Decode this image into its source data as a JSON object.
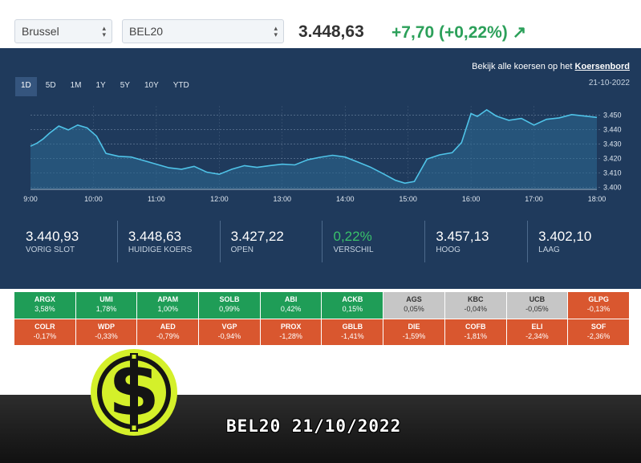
{
  "filters": {
    "market": "Brussel",
    "index": "BEL20"
  },
  "quote": {
    "price": "3.448,63",
    "change": "+7,70 (+0,22%) ↗",
    "accent_up": "#2ca05a"
  },
  "chart_panel": {
    "link_prefix": "Bekijk alle koersen op het ",
    "link_text": "Koersenbord",
    "date": "21-10-2022",
    "ranges": [
      "1D",
      "5D",
      "1M",
      "1Y",
      "5Y",
      "10Y",
      "YTD"
    ],
    "active_range": "1D"
  },
  "chart_data": {
    "type": "area",
    "title": "",
    "xlabel": "",
    "ylabel": "",
    "x_ticks": [
      "9:00",
      "10:00",
      "11:00",
      "12:00",
      "13:00",
      "14:00",
      "15:00",
      "16:00",
      "17:00",
      "18:00"
    ],
    "y_ticks": [
      "3.400",
      "3.410",
      "3.420",
      "3.430",
      "3.440",
      "3.450"
    ],
    "ylim": [
      3399,
      3458
    ],
    "xlim": [
      9.0,
      18.0
    ],
    "grid": true,
    "series": [
      {
        "x": [
          9.0,
          9.1,
          9.2,
          9.3,
          9.45,
          9.6,
          9.75,
          9.9,
          10.05,
          10.2,
          10.4,
          10.6,
          10.8,
          11.0,
          11.2,
          11.4,
          11.6,
          11.8,
          12.0,
          12.2,
          12.4,
          12.6,
          12.8,
          13.0,
          13.2,
          13.4,
          13.6,
          13.8,
          14.0,
          14.2,
          14.4,
          14.6,
          14.8,
          14.95,
          15.1,
          15.3,
          15.5,
          15.7,
          15.85,
          16.0,
          16.1,
          16.25,
          16.4,
          16.6,
          16.8,
          17.0,
          17.2,
          17.4,
          17.6,
          17.8,
          18.0
        ],
        "y": [
          3.4285,
          3.4305,
          3.4335,
          3.4375,
          3.4425,
          3.4398,
          3.4432,
          3.4412,
          3.4355,
          3.4235,
          3.4215,
          3.421,
          3.4185,
          3.416,
          3.4135,
          3.4125,
          3.4145,
          3.4105,
          3.409,
          3.4125,
          3.415,
          3.4138,
          3.415,
          3.416,
          3.4155,
          3.419,
          3.4208,
          3.4222,
          3.421,
          3.4175,
          3.414,
          3.4095,
          3.4048,
          3.4028,
          3.404,
          3.4195,
          3.4225,
          3.424,
          3.431,
          3.4512,
          3.4492,
          3.4538,
          3.4495,
          3.4465,
          3.4478,
          3.4432,
          3.4472,
          3.4482,
          3.4505,
          3.4495,
          3.4485
        ]
      }
    ]
  },
  "stats": [
    {
      "value": "3.440,93",
      "label": "VORIG SLOT"
    },
    {
      "value": "3.448,63",
      "label": "HUIDIGE KOERS"
    },
    {
      "value": "3.427,22",
      "label": "OPEN"
    },
    {
      "value": "0,22%",
      "label": "VERSCHIL"
    },
    {
      "value": "3.457,13",
      "label": "HOOG"
    },
    {
      "value": "3.402,10",
      "label": "LAAG"
    }
  ],
  "movers": [
    {
      "symbol": "ARGX",
      "change": "3,58%",
      "trend": "up"
    },
    {
      "symbol": "UMI",
      "change": "1,78%",
      "trend": "up"
    },
    {
      "symbol": "APAM",
      "change": "1,00%",
      "trend": "up"
    },
    {
      "symbol": "SOLB",
      "change": "0,99%",
      "trend": "up"
    },
    {
      "symbol": "ABI",
      "change": "0,42%",
      "trend": "up"
    },
    {
      "symbol": "ACKB",
      "change": "0,15%",
      "trend": "up"
    },
    {
      "symbol": "AGS",
      "change": "0,05%",
      "trend": "flat"
    },
    {
      "symbol": "KBC",
      "change": "-0,04%",
      "trend": "flat"
    },
    {
      "symbol": "UCB",
      "change": "-0,05%",
      "trend": "flat"
    },
    {
      "symbol": "GLPG",
      "change": "-0,13%",
      "trend": "down"
    },
    {
      "symbol": "COLR",
      "change": "-0,17%",
      "trend": "down"
    },
    {
      "symbol": "WDP",
      "change": "-0,33%",
      "trend": "down"
    },
    {
      "symbol": "AED",
      "change": "-0,79%",
      "trend": "down"
    },
    {
      "symbol": "VGP",
      "change": "-0,94%",
      "trend": "down"
    },
    {
      "symbol": "PROX",
      "change": "-1,28%",
      "trend": "down"
    },
    {
      "symbol": "GBLB",
      "change": "-1,41%",
      "trend": "down"
    },
    {
      "symbol": "DIE",
      "change": "-1,59%",
      "trend": "down"
    },
    {
      "symbol": "COFB",
      "change": "-1,81%",
      "trend": "down"
    },
    {
      "symbol": "ELI",
      "change": "-2,34%",
      "trend": "down"
    },
    {
      "symbol": "SOF",
      "change": "-2,36%",
      "trend": "down"
    }
  ],
  "banner": {
    "title": "BEL20 21/10/2022",
    "logo_text": "$"
  },
  "colors": {
    "panel": "#1f3a5c",
    "line": "#4fc3e8",
    "tile_up": "#1f9d57",
    "tile_flat": "#c6c6c6",
    "tile_down": "#d9572f",
    "logo": "#d4f02a"
  }
}
